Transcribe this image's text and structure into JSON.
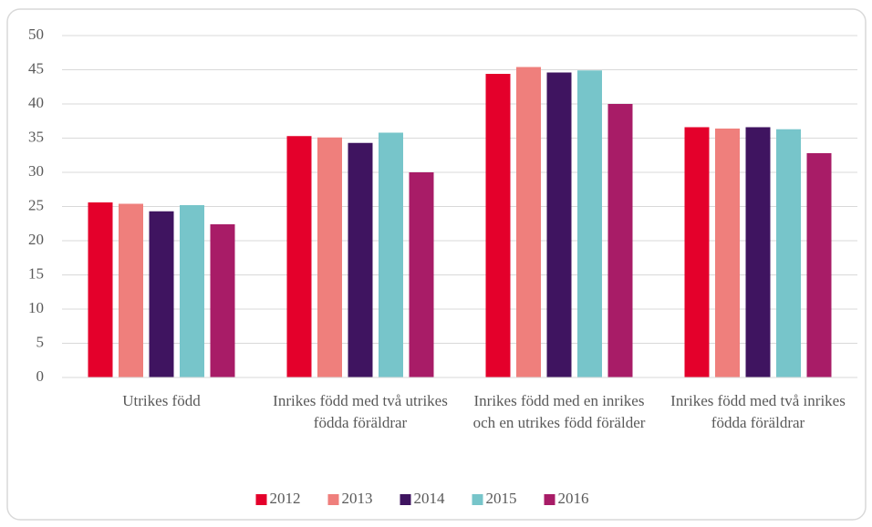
{
  "chart_data": {
    "type": "bar",
    "categories": [
      "Utrikes född",
      "Inrikes född med två utrikes födda föräldrar",
      "Inrikes född med en inrikes och en utrikes född förälder",
      "Inrikes född med två inrikes födda föräldrar"
    ],
    "series": [
      {
        "name": "2012",
        "color": "#e4002b",
        "values": [
          25.6,
          35.3,
          44.4,
          36.6
        ]
      },
      {
        "name": "2013",
        "color": "#ef7f7c",
        "values": [
          25.4,
          35.1,
          45.4,
          36.4
        ]
      },
      {
        "name": "2014",
        "color": "#3f1460",
        "values": [
          24.3,
          34.3,
          44.6,
          36.6
        ]
      },
      {
        "name": "2015",
        "color": "#77c5ca",
        "values": [
          25.2,
          35.8,
          44.9,
          36.3
        ]
      },
      {
        "name": "2016",
        "color": "#a81c67",
        "values": [
          22.4,
          30.0,
          40.0,
          32.8
        ]
      }
    ],
    "ylim": [
      0,
      50
    ],
    "yticks": [
      0,
      5,
      10,
      15,
      20,
      25,
      30,
      35,
      40,
      45,
      50
    ],
    "grid": true,
    "legend": "bottom"
  }
}
